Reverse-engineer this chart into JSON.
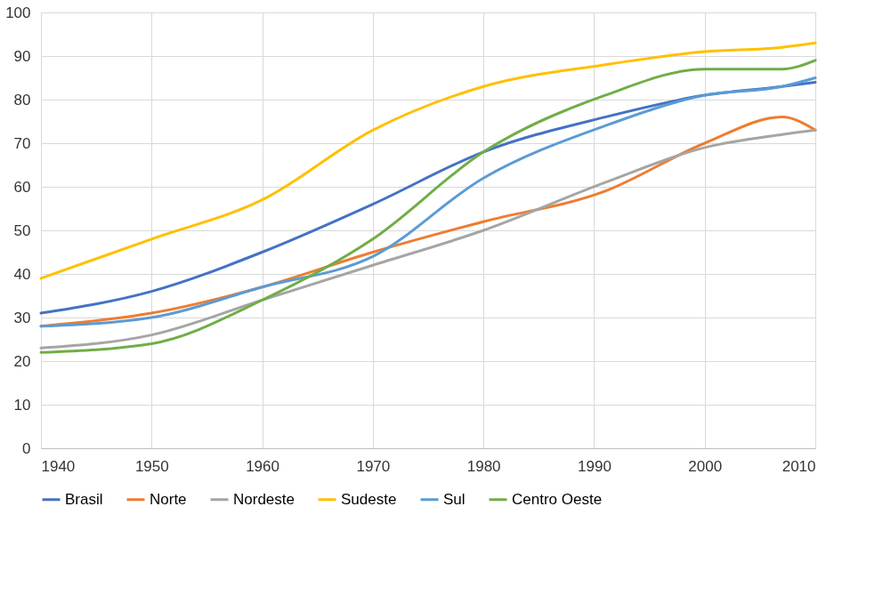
{
  "chart_data": {
    "type": "line",
    "x": [
      1940,
      1950,
      1960,
      1970,
      1980,
      1991,
      2000,
      2007,
      2010
    ],
    "series": [
      {
        "name": "Brasil",
        "color": "#4472c4",
        "values": [
          31,
          36,
          45,
          56,
          68,
          76,
          81,
          83,
          84
        ]
      },
      {
        "name": "Norte",
        "color": "#ed7d31",
        "values": [
          28,
          31,
          37,
          45,
          52,
          59,
          70,
          76,
          73
        ]
      },
      {
        "name": "Nordeste",
        "color": "#a5a5a5",
        "values": [
          23,
          26,
          34,
          42,
          50,
          61,
          69,
          72,
          73
        ]
      },
      {
        "name": "Sudeste",
        "color": "#ffc000",
        "values": [
          39,
          48,
          57,
          73,
          83,
          88,
          91,
          92,
          93
        ]
      },
      {
        "name": "Sul",
        "color": "#5b9bd5",
        "values": [
          28,
          30,
          37,
          44,
          62,
          74,
          81,
          83,
          85
        ]
      },
      {
        "name": "Centro Oeste",
        "color": "#70ad47",
        "values": [
          22,
          24,
          34,
          48,
          68,
          81,
          87,
          87,
          89
        ]
      }
    ],
    "xlim": [
      1940,
      2010
    ],
    "xticks": [
      1940,
      1950,
      1960,
      1970,
      1980,
      1990,
      2000,
      2010
    ],
    "ylim": [
      0,
      100
    ],
    "yticks": [
      0,
      10,
      20,
      30,
      40,
      50,
      60,
      70,
      80,
      90,
      100
    ],
    "grid": true,
    "legend": "bottom",
    "marker": "none",
    "line_style": "solid"
  }
}
